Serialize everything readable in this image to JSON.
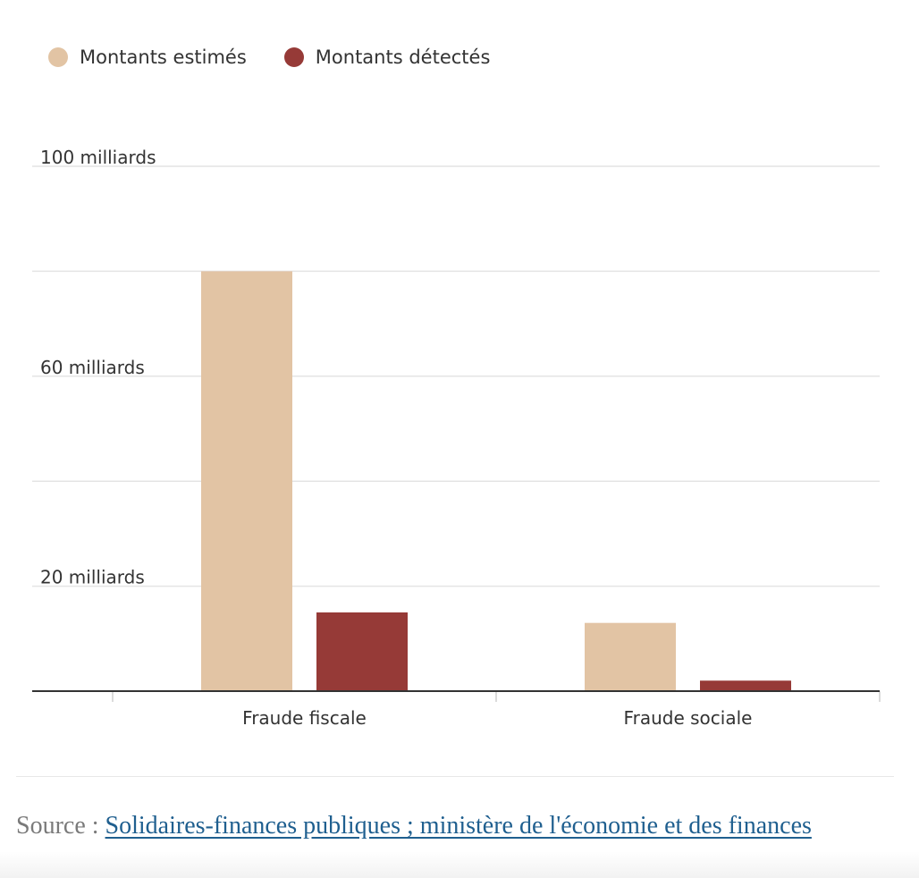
{
  "legend": [
    {
      "label": "Montants estimés",
      "color": "#e2c4a4"
    },
    {
      "label": "Montants détectés",
      "color": "#963a37"
    }
  ],
  "chart_data": {
    "type": "bar",
    "categories": [
      "Fraude fiscale",
      "Fraude sociale"
    ],
    "series": [
      {
        "name": "Montants estimés",
        "color": "#e2c4a4",
        "values": [
          80,
          13
        ]
      },
      {
        "name": "Montants détectés",
        "color": "#963a37",
        "values": [
          15,
          2
        ]
      }
    ],
    "ylim": [
      0,
      100
    ],
    "yticks": [
      0,
      20,
      40,
      60,
      80,
      100
    ],
    "ytick_labels": {
      "20": "20 milliards",
      "60": "60 milliards",
      "100": "100 milliards"
    },
    "grid": true,
    "legend_position": "top-left"
  },
  "source": {
    "prefix": "Source : ",
    "link_text": "Solidaires-finances publiques ; ministère de l'économie et des finances"
  }
}
